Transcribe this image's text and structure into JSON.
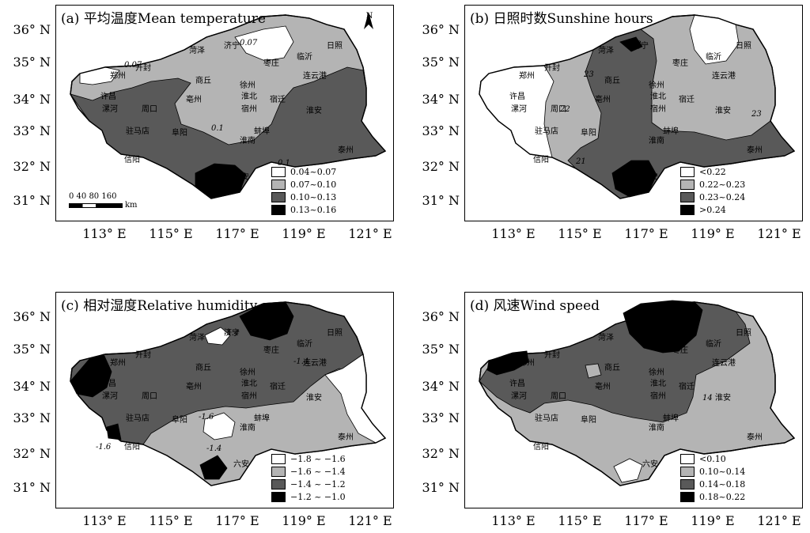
{
  "panels": [
    {
      "title": "(a)  平均温度Mean temperature",
      "legend": [
        "0.04~0.07",
        "0.07~0.10",
        "0.10~0.13",
        "0.13~0.16"
      ],
      "contour_labels": [
        "0.07",
        "0.1",
        "0.1",
        "0.07"
      ],
      "lat_labels": [
        "36° N",
        "35° N",
        "34° N",
        "33° N",
        "32° N",
        "31° N"
      ],
      "lon_labels": [
        "113° E",
        "115° E",
        "117° E",
        "119° E",
        "121° E"
      ],
      "scale_text": "0  40  80 160",
      "scale_unit": "km"
    },
    {
      "title": "(b)  日照时数Sunshine hours",
      "legend": [
        "<0.22",
        "0.22~0.23",
        "0.23~0.24",
        ">0.24"
      ],
      "contour_labels": [
        "22",
        "23",
        "23",
        "23",
        "21"
      ],
      "lat_labels": [
        "36° N",
        "35° N",
        "34° N",
        "33° N",
        "32° N",
        "31° N"
      ],
      "lon_labels": [
        "113° E",
        "115° E",
        "117° E",
        "119° E",
        "121° E"
      ]
    },
    {
      "title": "(c)  相对湿度Relative humidity",
      "legend": [
        "−1.8 ~ −1.6",
        "−1.6 ~ −1.4",
        "−1.4 ~ −1.2",
        "−1.2 ~ −1.0"
      ],
      "contour_labels": [
        "-1.4",
        "-1.6",
        "-1.6",
        "-1.4",
        "-1.4"
      ],
      "lat_labels": [
        "36° N",
        "35° N",
        "34° N",
        "33° N",
        "32° N",
        "31° N"
      ],
      "lon_labels": [
        "113° E",
        "115° E",
        "117° E",
        "119° E",
        "121° E"
      ]
    },
    {
      "title": "(d)  风速Wind speed",
      "legend": [
        "<0.10",
        "0.10~0.14",
        "0.14~0.18",
        "0.18~0.22"
      ],
      "contour_labels": [
        "14"
      ],
      "lat_labels": [
        "36° N",
        "35° N",
        "34° N",
        "33° N",
        "32° N",
        "31° N"
      ],
      "lon_labels": [
        "113° E",
        "115° E",
        "117° E",
        "119° E",
        "121° E"
      ]
    }
  ],
  "north_label": "N",
  "cities": [
    "菏泽",
    "济宁",
    "日照",
    "临沂",
    "枣庄",
    "开封",
    "郑州",
    "连云港",
    "商丘",
    "徐州",
    "许昌",
    "漯河",
    "周口",
    "亳州",
    "淮北",
    "宿迁",
    "宿州",
    "淮安",
    "驻马店",
    "阜阳",
    "蚌埠",
    "淮南",
    "泰州",
    "信阳",
    "六安"
  ],
  "colors": {
    "white": "#ffffff",
    "light": "#b4b4b4",
    "medium": "#595959",
    "dark": "#000000"
  }
}
